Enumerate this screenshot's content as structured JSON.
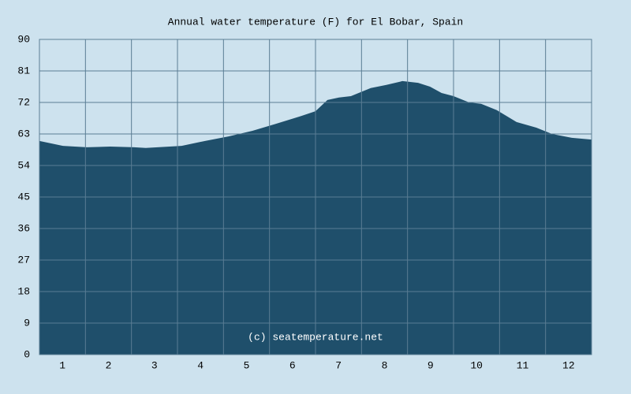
{
  "chart_data": {
    "type": "area",
    "title": "Annual water temperature (F) for El Bobar, Spain",
    "annotation": "(c) seatemperature.net",
    "color": "#1f4f6b",
    "background": "#cde2ee",
    "grid": true,
    "xlim": [
      0.5,
      12.5
    ],
    "xticks": [
      1,
      2,
      3,
      4,
      5,
      6,
      7,
      8,
      9,
      10,
      11,
      12
    ],
    "ylim": [
      0,
      90
    ],
    "yticks": [
      0,
      9,
      18,
      27,
      36,
      45,
      54,
      63,
      72,
      81,
      90
    ],
    "x": [
      0.5,
      1.01,
      1.53,
      2.04,
      2.56,
      2.81,
      3.07,
      3.59,
      4.1,
      4.61,
      5.13,
      5.64,
      6.16,
      6.5,
      6.76,
      7.01,
      7.27,
      7.7,
      8.04,
      8.39,
      8.73,
      8.99,
      9.24,
      9.5,
      9.84,
      10.1,
      10.44,
      10.87,
      11.3,
      11.64,
      12.07,
      12.5
    ],
    "values": [
      61.0,
      59.6,
      59.2,
      59.4,
      59.2,
      59.0,
      59.2,
      59.6,
      61.0,
      62.3,
      63.9,
      65.9,
      68.0,
      69.5,
      72.7,
      73.4,
      73.8,
      76.1,
      77.0,
      78.1,
      77.6,
      76.5,
      74.7,
      73.8,
      72.0,
      71.6,
      69.8,
      66.4,
      64.8,
      63.0,
      61.9,
      61.4
    ]
  }
}
